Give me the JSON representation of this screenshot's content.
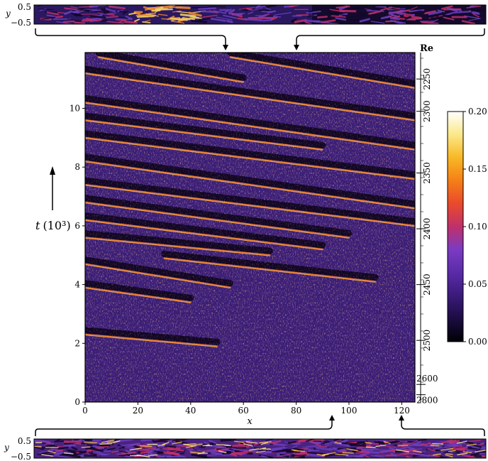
{
  "chart_data": [
    {
      "type": "heatmap",
      "description_role": "main space-time diagram",
      "xlabel": "x",
      "ylabel": "t (10",
      "ylabel_sup": "3",
      "ylabel_close": ")",
      "xlim": [
        0,
        125
      ],
      "ylim": [
        0,
        11.9
      ],
      "x_ticks": [
        0,
        20,
        40,
        60,
        80,
        100,
        120
      ],
      "y_ticks": [
        0,
        2,
        4,
        6,
        8,
        10
      ],
      "right_axis": {
        "label": "Re",
        "ticks": [
          {
            "t": 11.0,
            "label": "2250"
          },
          {
            "t": 9.9,
            "label": "2300"
          },
          {
            "t": 7.8,
            "label": "2350"
          },
          {
            "t": 5.9,
            "label": "2400"
          },
          {
            "t": 4.0,
            "label": "2450"
          },
          {
            "t": 2.1,
            "label": "2500"
          },
          {
            "t": 0.6,
            "label": "2600"
          },
          {
            "t": 0.25,
            "label": "2800"
          }
        ]
      },
      "stripes": [
        {
          "x0": 5,
          "t0": 11.75,
          "x1": 60,
          "t1": 10.9
        },
        {
          "x0": 55,
          "t0": 11.75,
          "x1": 125,
          "t1": 10.7
        },
        {
          "x0": 0,
          "t0": 11.2,
          "x1": 125,
          "t1": 9.6
        },
        {
          "x0": 0,
          "t0": 10.2,
          "x1": 125,
          "t1": 8.6
        },
        {
          "x0": 0,
          "t0": 9.6,
          "x1": 90,
          "t1": 8.6
        },
        {
          "x0": 0,
          "t0": 9.0,
          "x1": 125,
          "t1": 7.6
        },
        {
          "x0": 0,
          "t0": 8.2,
          "x1": 125,
          "t1": 6.6
        },
        {
          "x0": 0,
          "t0": 7.4,
          "x1": 125,
          "t1": 6.0
        },
        {
          "x0": 0,
          "t0": 6.8,
          "x1": 100,
          "t1": 5.6
        },
        {
          "x0": 0,
          "t0": 6.2,
          "x1": 90,
          "t1": 5.2
        },
        {
          "x0": 0,
          "t0": 5.6,
          "x1": 70,
          "t1": 5.0
        },
        {
          "x0": 30,
          "t0": 4.9,
          "x1": 110,
          "t1": 4.1
        },
        {
          "x0": 0,
          "t0": 4.7,
          "x1": 55,
          "t1": 3.9
        },
        {
          "x0": 0,
          "t0": 3.9,
          "x1": 40,
          "t1": 3.4
        },
        {
          "x0": 0,
          "t0": 2.3,
          "x1": 50,
          "t1": 1.9
        }
      ]
    },
    {
      "type": "heatmap",
      "description_role": "colorbar",
      "ticks": [
        "0.20",
        "0.15",
        "0.10",
        "0.05",
        "0.00"
      ],
      "tick_values": [
        0.2,
        0.15,
        0.1,
        0.05,
        0.0
      ],
      "range": [
        0.0,
        0.2
      ],
      "colormap": [
        "#000004",
        "#1b0c41",
        "#4a0c6b",
        "#781c6d",
        "#a52c60",
        "#cf4446",
        "#ed6925",
        "#fb9b06",
        "#f7d13d",
        "#fcffa4",
        "#ffffff"
      ]
    },
    {
      "type": "heatmap",
      "description_role": "top snapshot",
      "ylabel": "y",
      "y_ticks": [
        "0.5",
        "−0.5"
      ]
    },
    {
      "type": "heatmap",
      "description_role": "bottom snapshot",
      "ylabel": "y",
      "y_ticks": [
        "0.5",
        "−0.5"
      ]
    }
  ],
  "colors": {
    "background_dark": "#0d0520",
    "turbulent_purple": "#3d1c7a",
    "hot": "#f0a030"
  }
}
